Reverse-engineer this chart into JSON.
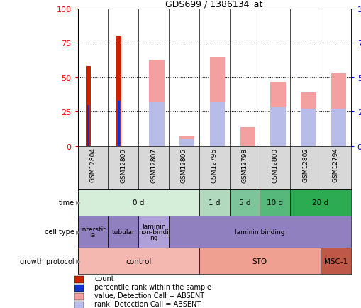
{
  "title": "GDS699 / 1386134_at",
  "samples": [
    "GSM12804",
    "GSM12809",
    "GSM12807",
    "GSM12805",
    "GSM12796",
    "GSM12798",
    "GSM12800",
    "GSM12802",
    "GSM12794"
  ],
  "count_values": [
    58,
    80,
    0,
    0,
    0,
    0,
    0,
    0,
    0
  ],
  "percentile_values": [
    30,
    33,
    0,
    0,
    0,
    0,
    0,
    0,
    0
  ],
  "pink_bar_values": [
    0,
    0,
    63,
    7,
    65,
    14,
    47,
    39,
    53
  ],
  "blue_bar_values": [
    0,
    0,
    32,
    5,
    32,
    0,
    28,
    27,
    27
  ],
  "y_ticks": [
    0,
    25,
    50,
    75,
    100
  ],
  "time_groups": [
    {
      "label": "0 d",
      "start": 0,
      "end": 4,
      "color": "#d5eeda"
    },
    {
      "label": "1 d",
      "start": 4,
      "end": 5,
      "color": "#b0d9be"
    },
    {
      "label": "5 d",
      "start": 5,
      "end": 6,
      "color": "#7cc49a"
    },
    {
      "label": "10 d",
      "start": 6,
      "end": 7,
      "color": "#56b87a"
    },
    {
      "label": "20 d",
      "start": 7,
      "end": 9,
      "color": "#2dab52"
    }
  ],
  "cell_type_groups": [
    {
      "label": "interstit\nial",
      "start": 0,
      "end": 1,
      "color": "#9080c0"
    },
    {
      "label": "tubular",
      "start": 1,
      "end": 2,
      "color": "#9080c0"
    },
    {
      "label": "laminin\nnon-bindi\nng",
      "start": 2,
      "end": 3,
      "color": "#b0a0d8"
    },
    {
      "label": "laminin binding",
      "start": 3,
      "end": 9,
      "color": "#9080c0"
    }
  ],
  "growth_protocol_groups": [
    {
      "label": "control",
      "start": 0,
      "end": 4,
      "color": "#f5b8b0"
    },
    {
      "label": "STO",
      "start": 4,
      "end": 8,
      "color": "#f0a090"
    },
    {
      "label": "MSC-1",
      "start": 8,
      "end": 9,
      "color": "#c05848"
    }
  ],
  "bar_color_red": "#cc2200",
  "bar_color_blue": "#1133cc",
  "bar_color_pink": "#f4a0a0",
  "bar_color_lightblue": "#b8bce8",
  "legend_items": [
    {
      "color": "#cc2200",
      "label": "count"
    },
    {
      "color": "#1133cc",
      "label": "percentile rank within the sample"
    },
    {
      "color": "#f4a0a0",
      "label": "value, Detection Call = ABSENT"
    },
    {
      "color": "#b8bce8",
      "label": "rank, Detection Call = ABSENT"
    }
  ],
  "sample_bg_color": "#d8d8d8",
  "fig_w": 5.1,
  "fig_h": 4.35,
  "dpi": 100
}
